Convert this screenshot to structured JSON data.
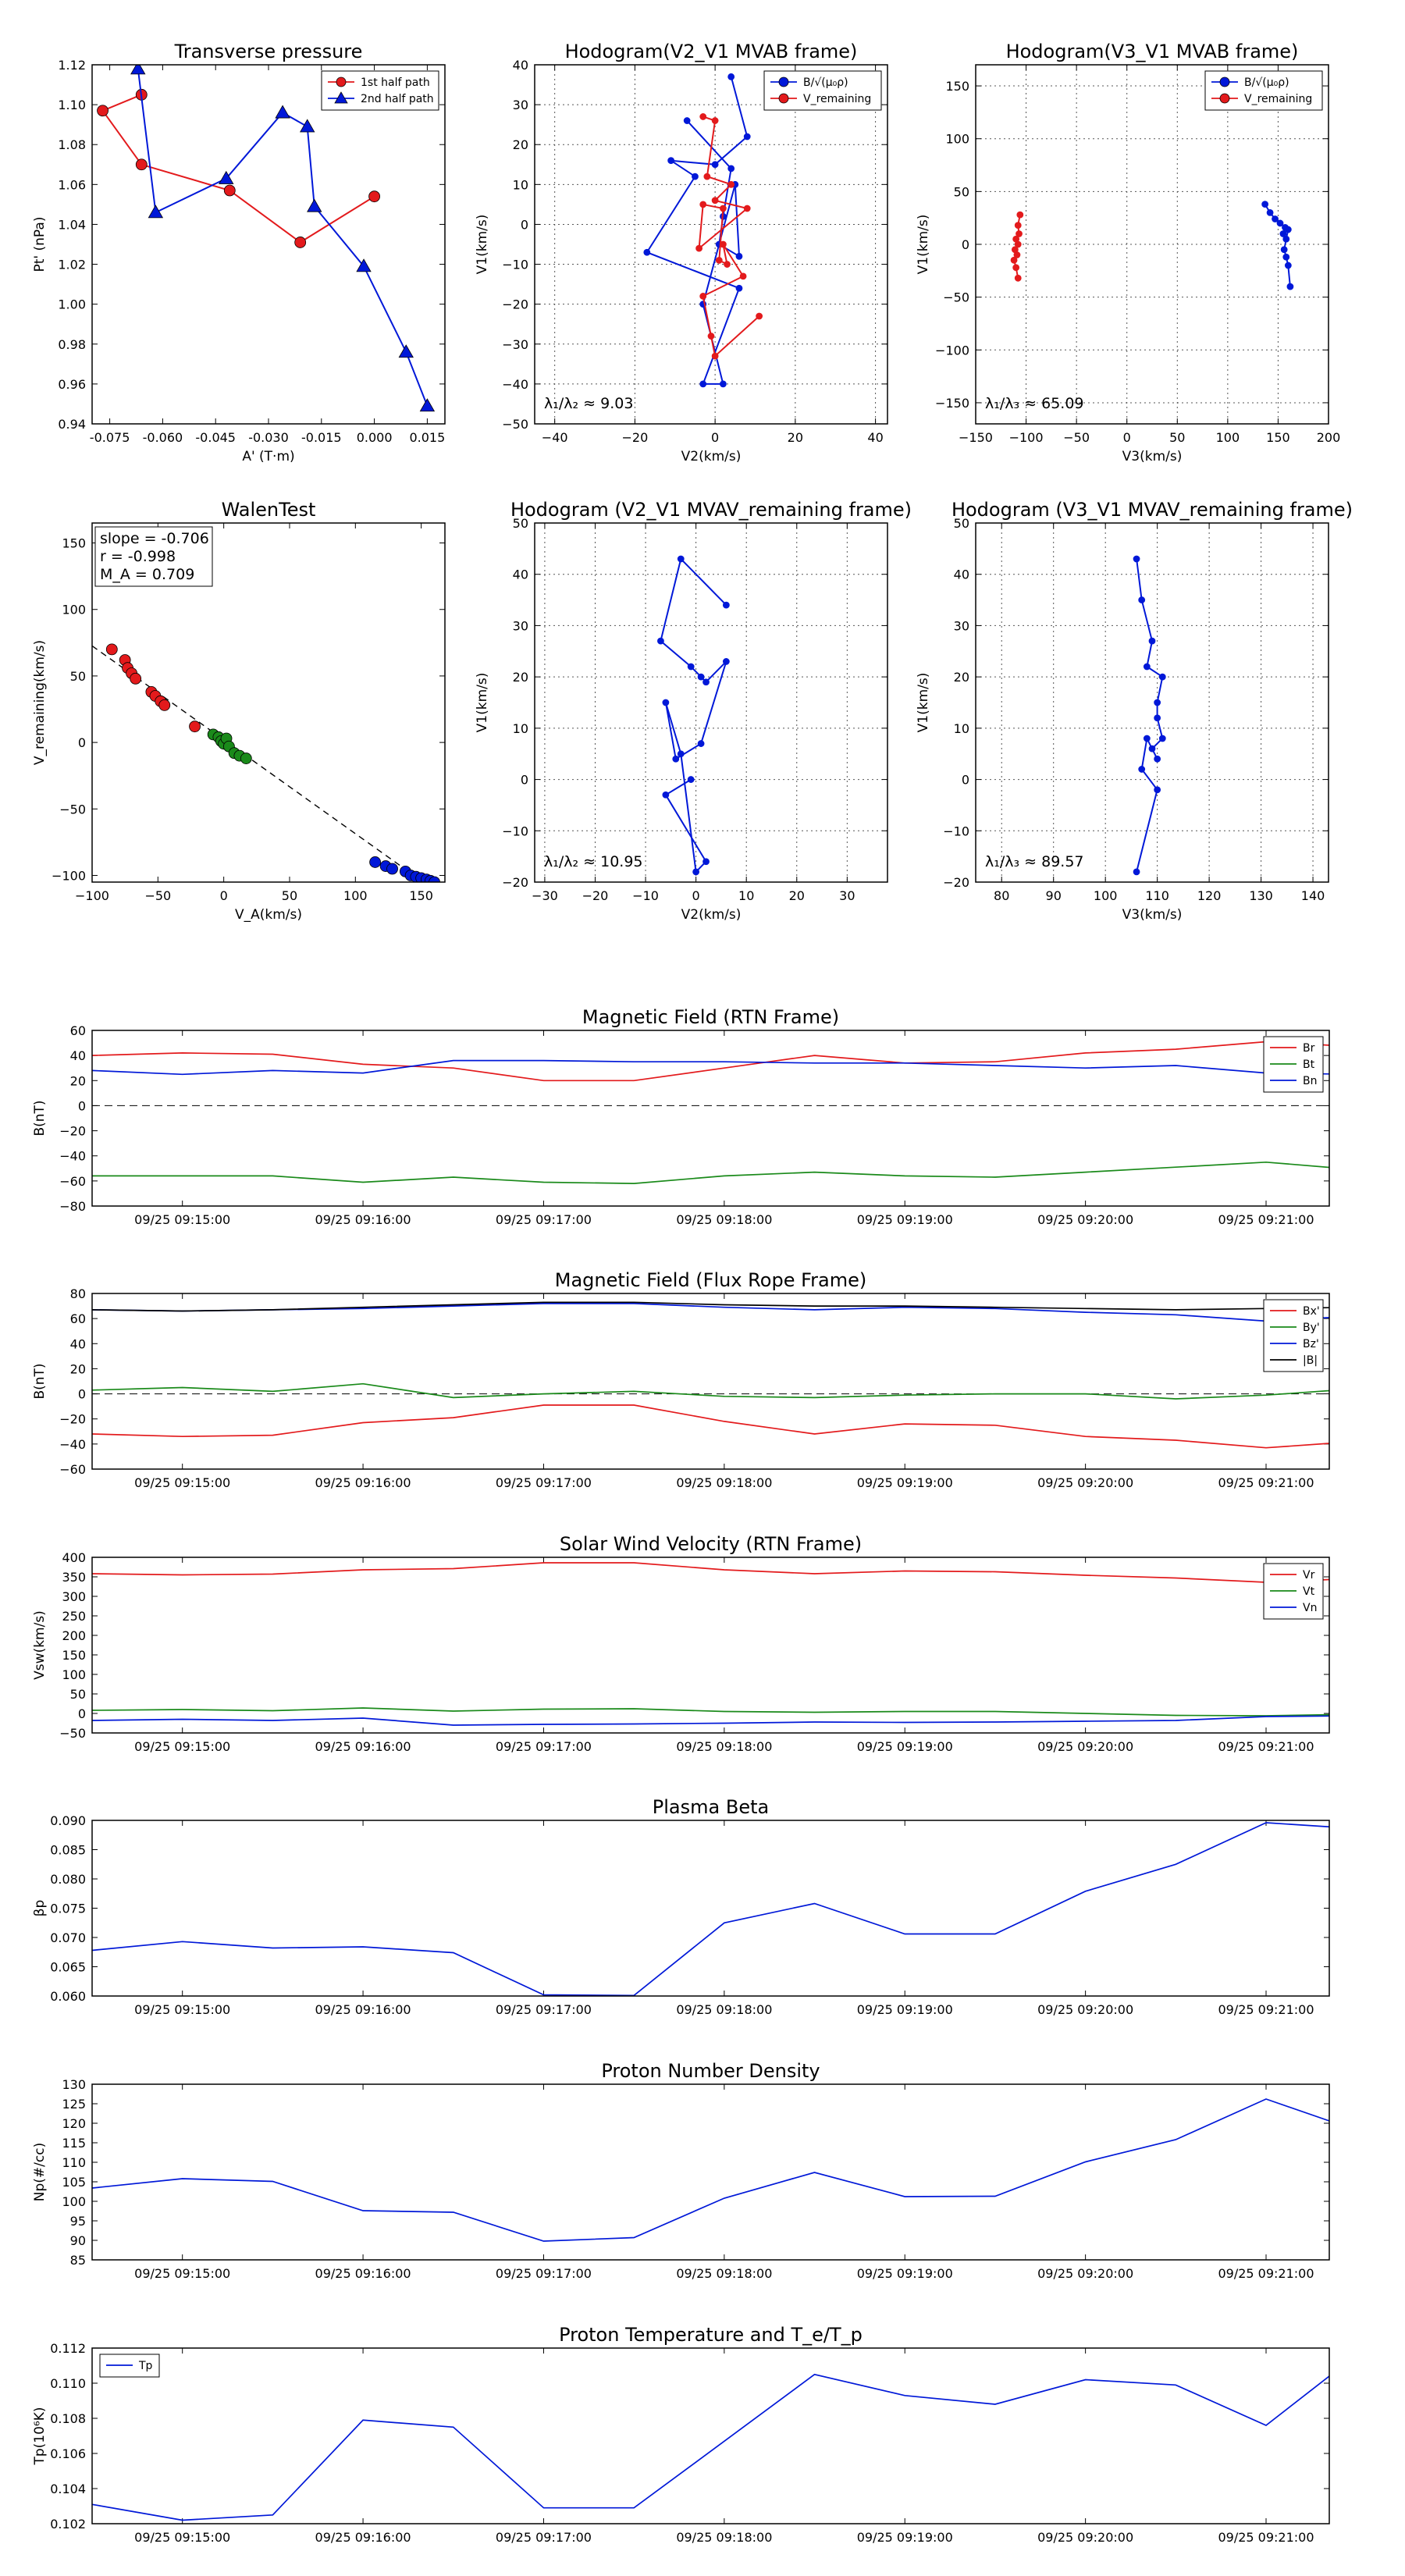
{
  "colors": {
    "red": "#e31a1c",
    "green": "#1a8a1a",
    "blue": "#0018d8",
    "black": "#000000"
  },
  "chart_data": [
    {
      "id": "p1",
      "type": "line",
      "title": "Transverse pressure",
      "xlabel": "A' (T·m)",
      "ylabel": "Pt' (nPa)",
      "xlim": [
        -0.08,
        0.02
      ],
      "ylim": [
        0.94,
        1.12
      ],
      "xticks": [
        -0.075,
        -0.06,
        -0.045,
        -0.03,
        -0.015,
        0.0,
        0.015
      ],
      "xtick_labels": [
        "-0.075",
        "-0.060",
        "-0.045",
        "-0.030",
        "-0.015",
        "0.000",
        "0.015"
      ],
      "yticks": [
        0.94,
        0.96,
        0.98,
        1.0,
        1.02,
        1.04,
        1.06,
        1.08,
        1.1,
        1.12
      ],
      "ytick_labels": [
        "0.94",
        "0.96",
        "0.98",
        "1.00",
        "1.02",
        "1.04",
        "1.06",
        "1.08",
        "1.10",
        "1.12"
      ],
      "grid": false,
      "legend": "top-right",
      "series": [
        {
          "name": "1st half path",
          "color": "red",
          "marker": "circle",
          "x": [
            0.0,
            -0.021,
            -0.041,
            -0.066,
            -0.077,
            -0.066
          ],
          "y": [
            1.054,
            1.031,
            1.057,
            1.07,
            1.097,
            1.105
          ]
        },
        {
          "name": "2nd half path",
          "color": "blue",
          "marker": "triangle",
          "x": [
            -0.067,
            -0.062,
            -0.042,
            -0.026,
            -0.019,
            -0.017,
            -0.003,
            0.009,
            0.015
          ],
          "y": [
            1.118,
            1.046,
            1.063,
            1.096,
            1.089,
            1.049,
            1.019,
            0.976,
            0.949
          ]
        }
      ]
    },
    {
      "id": "p2",
      "type": "line",
      "title": "Hodogram(V2_V1 MVAB frame)",
      "xlabel": "V2(km/s)",
      "ylabel": "V1(km/s)",
      "xlim": [
        -45,
        43
      ],
      "ylim": [
        -50,
        40
      ],
      "xticks": [
        -40,
        -20,
        0,
        20,
        40
      ],
      "xtick_labels": [
        "−40",
        "−20",
        "0",
        "20",
        "40"
      ],
      "yticks": [
        -50,
        -40,
        -30,
        -20,
        -10,
        0,
        10,
        20,
        30,
        40
      ],
      "ytick_labels": [
        "−50",
        "−40",
        "−30",
        "−20",
        "−10",
        "0",
        "10",
        "20",
        "30",
        "40"
      ],
      "grid": true,
      "legend": "top-right",
      "annotation": "λ₁/λ₂ ≈ 9.03",
      "series": [
        {
          "name": "B/√(μ₀ρ)",
          "color": "blue",
          "marker": "circle",
          "x": [
            4,
            8,
            0,
            -11,
            -5,
            -17,
            6,
            -3,
            2,
            -3,
            5,
            6,
            1,
            2,
            4,
            -7
          ],
          "y": [
            37,
            22,
            15,
            16,
            12,
            -7,
            -16,
            -40,
            -40,
            -20,
            10,
            -8,
            -5,
            2,
            14,
            26
          ]
        },
        {
          "name": "V_remaining",
          "color": "red",
          "marker": "circle",
          "x": [
            -3,
            0,
            -2,
            4,
            0,
            8,
            -4,
            -3,
            2,
            1,
            3,
            2,
            7,
            -3,
            -1,
            0,
            11
          ],
          "y": [
            27,
            26,
            12,
            10,
            6,
            4,
            -6,
            5,
            4,
            -9,
            -10,
            -5,
            -13,
            -18,
            -28,
            -33,
            -23
          ]
        }
      ]
    },
    {
      "id": "p3",
      "type": "line",
      "title": "Hodogram(V3_V1 MVAB frame)",
      "xlabel": "V3(km/s)",
      "ylabel": "V1(km/s)",
      "xlim": [
        -150,
        200
      ],
      "ylim": [
        -170,
        170
      ],
      "xticks": [
        -150,
        -100,
        -50,
        0,
        50,
        100,
        150,
        200
      ],
      "xtick_labels": [
        "−150",
        "−100",
        "−50",
        "0",
        "50",
        "100",
        "150",
        "200"
      ],
      "yticks": [
        -150,
        -100,
        -50,
        0,
        50,
        100,
        150
      ],
      "ytick_labels": [
        "−150",
        "−100",
        "−50",
        "0",
        "50",
        "100",
        "150"
      ],
      "grid": true,
      "legend": "top-right",
      "annotation": "λ₁/λ₃ ≈ 65.09",
      "series": [
        {
          "name": "B/√(μ₀ρ)",
          "color": "blue",
          "marker": "circle",
          "x": [
            137,
            142,
            147,
            152,
            157,
            155,
            160,
            158,
            156,
            158,
            160,
            162
          ],
          "y": [
            38,
            30,
            24,
            20,
            16,
            10,
            14,
            5,
            -5,
            -12,
            -20,
            -40
          ]
        },
        {
          "name": "V_remaining",
          "color": "red",
          "marker": "circle",
          "x": [
            -106,
            -108,
            -107,
            -110,
            -108,
            -111,
            -109,
            -112,
            -110,
            -108
          ],
          "y": [
            28,
            18,
            10,
            5,
            0,
            -5,
            -10,
            -15,
            -22,
            -32
          ]
        }
      ]
    },
    {
      "id": "p4",
      "type": "scatter",
      "title": "WalenTest",
      "xlabel": "V_A(km/s)",
      "ylabel": "V_remaining(km/s)",
      "xlim": [
        -100,
        168
      ],
      "ylim": [
        -105,
        165
      ],
      "xticks": [
        -100,
        -50,
        0,
        50,
        100,
        150
      ],
      "xtick_labels": [
        "−100",
        "−50",
        "0",
        "50",
        "100",
        "150"
      ],
      "yticks": [
        -100,
        -50,
        0,
        50,
        100,
        150
      ],
      "ytick_labels": [
        "−100",
        "−50",
        "0",
        "50",
        "100",
        "150"
      ],
      "grid": false,
      "annotation_lines": [
        "slope = -0.706",
        "r = -0.998",
        "M_A = 0.709"
      ],
      "fit": {
        "slope": -0.706,
        "intercept": 2
      },
      "series": [
        {
          "name": "red",
          "color": "red",
          "marker": "circle",
          "x": [
            -85,
            -75,
            -73,
            -70,
            -67,
            -55,
            -52,
            -48,
            -45,
            -22
          ],
          "y": [
            70,
            62,
            56,
            52,
            48,
            38,
            35,
            31,
            28,
            12
          ]
        },
        {
          "name": "green",
          "color": "green",
          "marker": "circle",
          "x": [
            -8,
            -4,
            -2,
            0,
            2,
            4,
            8,
            12,
            17
          ],
          "y": [
            6,
            4,
            1,
            -1,
            3,
            -3,
            -8,
            -10,
            -12
          ]
        },
        {
          "name": "blue",
          "color": "blue",
          "marker": "circle",
          "x": [
            115,
            123,
            128,
            138,
            142,
            146,
            150,
            154,
            157,
            160
          ],
          "y": [
            -90,
            -93,
            -95,
            -97,
            -100,
            -101,
            -102,
            -103,
            -104,
            -105
          ]
        }
      ]
    },
    {
      "id": "p5",
      "type": "line",
      "title": "Hodogram (V2_V1 MVAV_remaining frame)",
      "xlabel": "V2(km/s)",
      "ylabel": "V1(km/s)",
      "xlim": [
        -32,
        38
      ],
      "ylim": [
        -20,
        50
      ],
      "xticks": [
        -30,
        -20,
        -10,
        0,
        10,
        20,
        30
      ],
      "xtick_labels": [
        "−30",
        "−20",
        "−10",
        "0",
        "10",
        "20",
        "30"
      ],
      "yticks": [
        -20,
        -10,
        0,
        10,
        20,
        30,
        40,
        50
      ],
      "ytick_labels": [
        "−20",
        "−10",
        "0",
        "10",
        "20",
        "30",
        "40",
        "50"
      ],
      "grid": true,
      "annotation": "λ₁/λ₂ ≈ 10.95",
      "series": [
        {
          "name": "V",
          "color": "blue",
          "marker": "circle",
          "x": [
            6,
            -3,
            -7,
            -1,
            1,
            2,
            6,
            1,
            -4,
            -6,
            -3,
            0,
            2,
            -6,
            -1
          ],
          "y": [
            34,
            43,
            27,
            22,
            20,
            19,
            23,
            7,
            4,
            15,
            5,
            -18,
            -16,
            -3,
            0
          ]
        }
      ]
    },
    {
      "id": "p6",
      "type": "line",
      "title": "Hodogram (V3_V1 MVAV_remaining frame)",
      "xlabel": "V3(km/s)",
      "ylabel": "V1(km/s)",
      "xlim": [
        75,
        143
      ],
      "ylim": [
        -20,
        50
      ],
      "xticks": [
        80,
        90,
        100,
        110,
        120,
        130,
        140
      ],
      "xtick_labels": [
        "80",
        "90",
        "100",
        "110",
        "120",
        "130",
        "140"
      ],
      "yticks": [
        -20,
        -10,
        0,
        10,
        20,
        30,
        40,
        50
      ],
      "ytick_labels": [
        "−20",
        "−10",
        "0",
        "10",
        "20",
        "30",
        "40",
        "50"
      ],
      "grid": true,
      "annotation": "λ₁/λ₃ ≈ 89.57",
      "series": [
        {
          "name": "V",
          "color": "blue",
          "marker": "circle",
          "x": [
            106,
            107,
            109,
            108,
            111,
            110,
            110,
            111,
            109,
            110,
            108,
            107,
            110,
            106
          ],
          "y": [
            43,
            35,
            27,
            22,
            20,
            15,
            12,
            8,
            6,
            4,
            8,
            2,
            -2,
            -18
          ]
        }
      ]
    },
    {
      "id": "t1",
      "type": "line",
      "title": "Magnetic Field (RTN Frame)",
      "ylabel": "B(nT)",
      "ylim": [
        -80,
        60
      ],
      "yticks": [
        -80,
        -60,
        -40,
        -20,
        0,
        20,
        40,
        60
      ],
      "ytick_labels": [
        "−80",
        "−60",
        "−40",
        "−20",
        "0",
        "20",
        "40",
        "60"
      ],
      "zero_line": true,
      "legend": "top-right",
      "series": [
        {
          "name": "Br",
          "color": "red",
          "values": [
            40,
            42,
            41,
            33,
            30,
            20,
            20,
            30,
            40,
            34,
            35,
            42,
            45,
            51,
            47
          ]
        },
        {
          "name": "Bt",
          "color": "green",
          "values": [
            -56,
            -56,
            -56,
            -61,
            -57,
            -61,
            -62,
            -56,
            -53,
            -56,
            -57,
            -53,
            -49,
            -45,
            -51
          ]
        },
        {
          "name": "Bn",
          "color": "blue",
          "values": [
            28,
            25,
            28,
            26,
            36,
            36,
            35,
            35,
            34,
            34,
            32,
            30,
            32,
            26,
            25
          ]
        }
      ]
    },
    {
      "id": "t2",
      "type": "line",
      "title": "Magnetic Field (Flux Rope Frame)",
      "ylabel": "B(nT)",
      "ylim": [
        -60,
        80
      ],
      "yticks": [
        -60,
        -40,
        -20,
        0,
        20,
        40,
        60,
        80
      ],
      "ytick_labels": [
        "−60",
        "−40",
        "−20",
        "0",
        "20",
        "40",
        "60",
        "80"
      ],
      "zero_line": true,
      "legend": "top-right",
      "series": [
        {
          "name": "Bx'",
          "color": "red",
          "values": [
            -32,
            -34,
            -33,
            -23,
            -19,
            -9,
            -9,
            -22,
            -32,
            -24,
            -25,
            -34,
            -37,
            -43,
            -38
          ]
        },
        {
          "name": "By'",
          "color": "green",
          "values": [
            3,
            5,
            2,
            8,
            -3,
            0,
            2,
            -2,
            -3,
            -1,
            0,
            0,
            -4,
            -1,
            4
          ]
        },
        {
          "name": "Bz'",
          "color": "blue",
          "values": [
            67,
            66,
            67,
            68,
            70,
            72,
            72,
            69,
            67,
            69,
            68,
            65,
            63,
            58,
            62
          ]
        },
        {
          "name": "|B|",
          "color": "black",
          "values": [
            67,
            66,
            67,
            69,
            71,
            73,
            73,
            71,
            70,
            70,
            69,
            68,
            67,
            68,
            69
          ]
        }
      ]
    },
    {
      "id": "t3",
      "type": "line",
      "title": "Solar Wind Velocity (RTN Frame)",
      "ylabel": "Vsw(km/s)",
      "ylim": [
        -50,
        400
      ],
      "yticks": [
        -50,
        0,
        50,
        100,
        150,
        200,
        250,
        300,
        350,
        400
      ],
      "ytick_labels": [
        "−50",
        "0",
        "50",
        "100",
        "150",
        "200",
        "250",
        "300",
        "350",
        "400"
      ],
      "zero_line": false,
      "legend": "top-right",
      "series": [
        {
          "name": "Vr",
          "color": "red",
          "values": [
            358,
            355,
            357,
            368,
            371,
            386,
            386,
            368,
            358,
            365,
            363,
            354,
            347,
            336,
            346
          ]
        },
        {
          "name": "Vt",
          "color": "green",
          "values": [
            8,
            10,
            7,
            14,
            6,
            11,
            12,
            5,
            3,
            5,
            5,
            0,
            -5,
            -6,
            -2
          ]
        },
        {
          "name": "Vn",
          "color": "blue",
          "values": [
            -18,
            -15,
            -18,
            -12,
            -30,
            -28,
            -27,
            -25,
            -22,
            -23,
            -22,
            -20,
            -18,
            -8,
            -6
          ]
        }
      ]
    },
    {
      "id": "t4",
      "type": "line",
      "title": "Plasma Beta",
      "ylabel": "βp",
      "ylim": [
        0.06,
        0.09
      ],
      "yticks": [
        0.06,
        0.065,
        0.07,
        0.075,
        0.08,
        0.085,
        0.09
      ],
      "ytick_labels": [
        "0.060",
        "0.065",
        "0.070",
        "0.075",
        "0.080",
        "0.085",
        "0.090"
      ],
      "zero_line": false,
      "series": [
        {
          "name": "beta",
          "color": "blue",
          "values": [
            0.0678,
            0.0693,
            0.0682,
            0.0684,
            0.0674,
            0.0602,
            0.0601,
            0.0725,
            0.0758,
            0.0706,
            0.0706,
            0.0779,
            0.0825,
            0.0896,
            0.0886
          ]
        }
      ]
    },
    {
      "id": "t5",
      "type": "line",
      "title": "Proton Number Density",
      "ylabel": "Np(#/cc)",
      "ylim": [
        85,
        130
      ],
      "yticks": [
        85,
        90,
        95,
        100,
        105,
        110,
        115,
        120,
        125,
        130
      ],
      "ytick_labels": [
        "85",
        "90",
        "95",
        "100",
        "105",
        "110",
        "115",
        "120",
        "125",
        "130"
      ],
      "zero_line": false,
      "series": [
        {
          "name": "Np",
          "color": "blue",
          "values": [
            103.4,
            105.8,
            105.1,
            97.6,
            97.2,
            89.8,
            90.7,
            100.8,
            107.4,
            101.2,
            101.3,
            110.1,
            115.8,
            126.2,
            118.2
          ]
        }
      ]
    },
    {
      "id": "t6",
      "type": "line",
      "title": "Proton Temperature and T_e/T_p",
      "ylabel": "Tp(10⁶K)",
      "ylim": [
        0.102,
        0.112
      ],
      "yticks": [
        0.102,
        0.104,
        0.106,
        0.108,
        0.11,
        0.112
      ],
      "ytick_labels": [
        "0.102",
        "0.104",
        "0.106",
        "0.108",
        "0.110",
        "0.112"
      ],
      "zero_line": false,
      "legend": "top-left",
      "series": [
        {
          "name": "Tp",
          "color": "blue",
          "values": [
            0.1031,
            0.1022,
            0.1025,
            0.1079,
            0.1075,
            0.1029,
            0.1029,
            0.1067,
            0.1105,
            0.1093,
            0.1088,
            0.1102,
            0.1099,
            0.1076,
            0.1116
          ]
        }
      ]
    }
  ],
  "time_axis": {
    "start_min": 14.5,
    "end_min": 21.35,
    "sample_interval_min": 0.5,
    "ticks_min": [
      15,
      16,
      17,
      18,
      19,
      20,
      21
    ],
    "tick_labels": [
      "09/25 09:15:00",
      "09/25 09:16:00",
      "09/25 09:17:00",
      "09/25 09:18:00",
      "09/25 09:19:00",
      "09/25 09:20:00",
      "09/25 09:21:00"
    ]
  }
}
